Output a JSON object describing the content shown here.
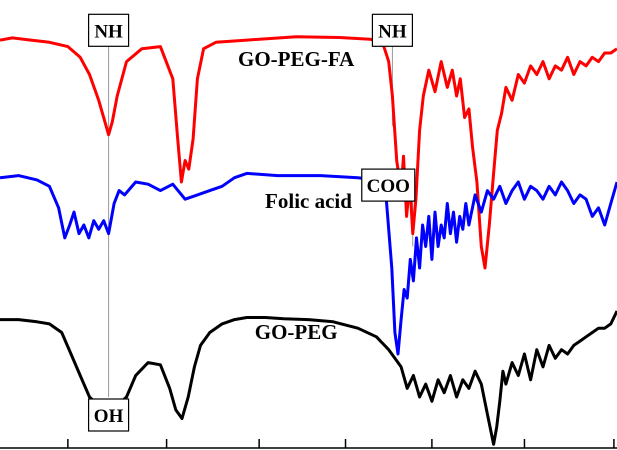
{
  "chart_data": {
    "type": "line",
    "title": "",
    "xlabel": "",
    "ylabel": "",
    "xlim": [
      0,
      100
    ],
    "ylim": [
      0,
      100
    ],
    "grid": false,
    "legend": "none",
    "series": [
      {
        "name": "GO-PEG-FA",
        "color": "#ff0000",
        "x": [
          0,
          2,
          5,
          8,
          11,
          13,
          14.5,
          16,
          17,
          17.6,
          18.2,
          19,
          20.5,
          23,
          26,
          28,
          28.8,
          29.4,
          30,
          30.6,
          31.3,
          32,
          33,
          35,
          40,
          48,
          55,
          60,
          62,
          63,
          63.6,
          64.3,
          65,
          65.4,
          65.9,
          66.4,
          66.9,
          67.4,
          68,
          68.6,
          69.5,
          70.5,
          71.5,
          72.5,
          73.3,
          74,
          74.6,
          75.3,
          76,
          76.6,
          77.3,
          78,
          78.6,
          79.3,
          80,
          80.6,
          81.3,
          82,
          83,
          84,
          85,
          86,
          87,
          88,
          89,
          90,
          91,
          92,
          93,
          94,
          95,
          96,
          97,
          98,
          99,
          100
        ],
        "y": [
          93,
          93.5,
          93,
          92.5,
          91.5,
          89,
          85,
          79,
          74,
          71,
          74,
          80,
          88,
          91,
          91.5,
          84,
          70,
          60,
          65,
          63,
          70,
          84,
          91,
          92.5,
          93,
          93.8,
          93.6,
          93.2,
          92.5,
          88,
          80,
          65,
          58,
          66,
          52,
          60,
          48,
          56,
          72,
          80,
          86,
          81,
          88,
          82,
          86,
          80,
          84,
          75,
          77,
          68,
          60,
          45,
          40,
          50,
          62,
          72,
          76,
          82,
          79,
          85,
          83,
          87,
          85,
          88,
          84,
          87,
          86,
          89,
          85,
          88,
          87,
          89,
          88,
          90,
          90,
          91
        ]
      },
      {
        "name": "Folic acid",
        "color": "#0000ff",
        "x": [
          0,
          3,
          6,
          8,
          9.5,
          10.5,
          11.3,
          12,
          12.8,
          13.6,
          14.4,
          15.2,
          16,
          16.8,
          17.6,
          18.5,
          19.3,
          20.2,
          22,
          24,
          26,
          28,
          30,
          32,
          34,
          36,
          38,
          40,
          45,
          52,
          58,
          61,
          62.5,
          63.5,
          64,
          64.5,
          65,
          65.5,
          66,
          66.5,
          67,
          67.5,
          68,
          68.5,
          69,
          69.5,
          70,
          70.5,
          71,
          71.5,
          72,
          72.5,
          73,
          73.5,
          74,
          74.5,
          75,
          75.5,
          76,
          77,
          78,
          79,
          80,
          81,
          82,
          83,
          84,
          85,
          86,
          87,
          88,
          89,
          90,
          91,
          92,
          93,
          94,
          95,
          96,
          97,
          98,
          99,
          100
        ],
        "y": [
          61,
          61.5,
          60.5,
          59,
          54,
          47,
          50,
          53,
          48,
          50,
          47,
          51,
          49,
          51,
          48,
          55,
          58,
          57,
          60,
          59.5,
          58,
          59.5,
          56,
          57,
          58,
          59,
          61,
          62,
          61.5,
          61.5,
          61,
          60.5,
          58,
          40,
          25,
          20,
          28,
          35,
          33,
          42,
          37,
          47,
          40,
          50,
          45,
          52,
          42,
          53,
          45,
          50,
          47,
          55,
          48,
          53,
          46,
          52,
          49,
          55,
          50,
          57,
          53,
          58,
          56,
          59,
          55,
          58,
          60,
          56,
          59,
          58,
          56,
          59,
          57,
          60,
          58,
          55,
          57,
          56,
          52,
          54,
          50,
          55,
          60
        ]
      },
      {
        "name": "GO-PEG",
        "color": "#000000",
        "x": [
          0,
          3,
          6,
          8,
          10,
          11.5,
          13,
          14.5,
          16,
          17.5,
          19,
          20.5,
          22,
          24,
          26,
          27.5,
          28.5,
          29.5,
          30.5,
          31.5,
          32.5,
          34,
          36,
          38,
          40,
          43,
          46,
          50,
          54,
          58,
          61,
          63,
          64,
          65,
          66,
          67,
          68,
          69,
          70,
          71,
          72,
          73,
          74,
          75,
          76,
          77,
          78,
          79,
          80,
          80.5,
          81,
          81.5,
          82,
          83,
          84,
          85,
          86,
          87,
          88,
          89,
          90,
          91,
          92,
          93,
          94,
          95,
          96,
          97,
          98,
          99,
          100
        ],
        "y": [
          28,
          28,
          27.5,
          27,
          25,
          20,
          15,
          10,
          8,
          7.5,
          8,
          10,
          15,
          18,
          17.5,
          12,
          7,
          5,
          10,
          17,
          22,
          25,
          27,
          28,
          28.5,
          28.5,
          28.2,
          28,
          27.5,
          26,
          24,
          21,
          19,
          17,
          12,
          15,
          10,
          13,
          9,
          14,
          11,
          15,
          10,
          14,
          12,
          16,
          13,
          6,
          -1,
          3,
          9,
          16,
          13,
          18,
          15,
          20,
          14,
          21,
          17,
          22,
          19,
          21,
          20,
          22,
          23,
          24,
          25,
          26,
          26,
          27,
          30
        ]
      }
    ],
    "annotations": [
      {
        "text": "NH",
        "x": 17.6,
        "y_top": 99,
        "y_bottom": 43,
        "boxed": true,
        "label_pos": "top"
      },
      {
        "text": "NH",
        "x": 63.6,
        "y_top": 99,
        "y_bottom": 73,
        "boxed": true,
        "label_pos": "top"
      },
      {
        "text": "COO",
        "x": 66.9,
        "y_top": 63,
        "y_bottom": 45,
        "boxed": true,
        "label_pos": "left"
      },
      {
        "text": "OH",
        "x": 17.6,
        "y_top": 43,
        "y_bottom": 10,
        "boxed": true,
        "label_pos": "bottom"
      }
    ],
    "series_labels": [
      {
        "text": "GO-PEG-FA",
        "x": 48,
        "y": 87
      },
      {
        "text": "Folic acid",
        "x": 50,
        "y": 54
      },
      {
        "text": "GO-PEG",
        "x": 48,
        "y": 23.5
      }
    ],
    "x_ticks": [
      11,
      27,
      42,
      56,
      70,
      85,
      99.5
    ]
  }
}
